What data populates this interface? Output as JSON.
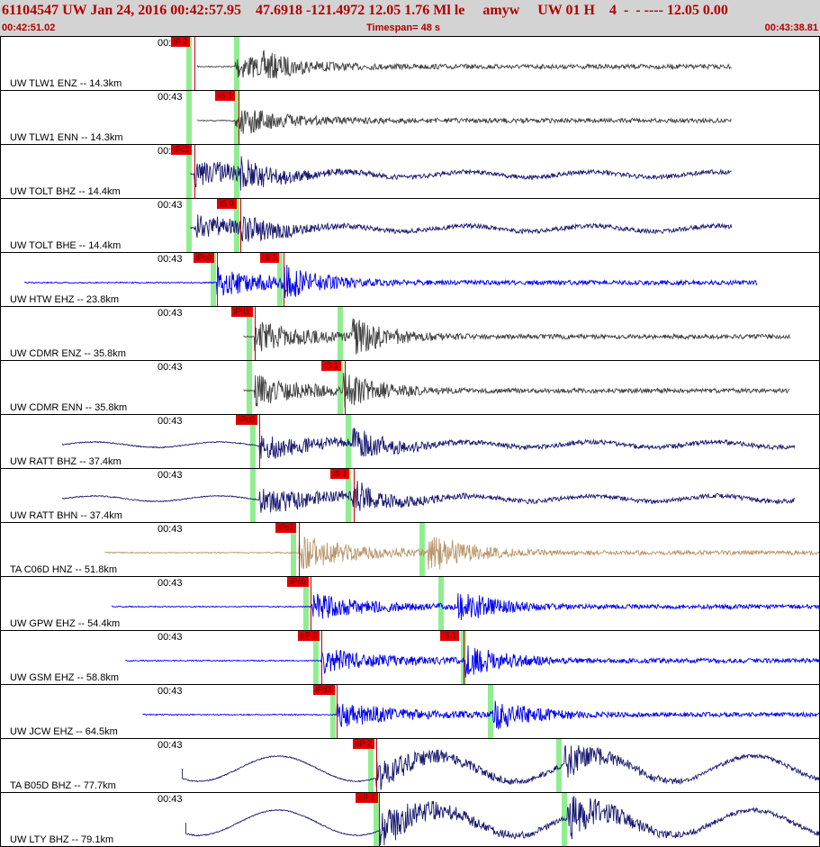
{
  "header": {
    "title": "61104547 UW Jan 24, 2016 00:42:57.95    47.6918 -121.4972 12.05 1.76 Ml le     amyw     UW 01 H    4  -  - ---- 12.05 0.00",
    "start_time": "00:42:51.02",
    "timespan": "Timespan=  48 s",
    "end_time": "00:43:38.81"
  },
  "colors": {
    "black": "#404040",
    "navy": "#191970",
    "blue": "#0000ee",
    "tan": "#b8956b",
    "pick": "#e00000",
    "pick_window": "#90ee90"
  },
  "traces": [
    {
      "label": "UW TLW1 ENZ -- 14.3km",
      "time": "00:43",
      "color": "black",
      "start_s": 11.5,
      "end_s": 42.7,
      "amp": 13,
      "burst_s": 13.7,
      "burst2_s": 15.3,
      "picks": [
        {
          "label": "iP 2",
          "time_s": 11.3
        }
      ],
      "windows": [
        11.0,
        13.8
      ]
    },
    {
      "label": "UW TLW1 ENN -- 14.3km",
      "time": "00:43",
      "color": "black",
      "start_s": 11.5,
      "end_s": 42.7,
      "amp": 12,
      "burst_s": 13.7,
      "burst2_s": 14.1,
      "picks": [
        {
          "label": "iS 1",
          "time_s": 13.9
        }
      ],
      "windows": [
        11.0,
        13.8
      ]
    },
    {
      "label": "UW TOLT BHZ -- 14.4km",
      "time": "00:43",
      "color": "navy",
      "start_s": 11.1,
      "end_s": 42.7,
      "amp": 14,
      "burst_s": 11.3,
      "burst2_s": 14.0,
      "picks": [
        {
          "label": "iPc1",
          "time_s": 11.3
        }
      ],
      "windows": [
        11.0,
        13.8
      ]
    },
    {
      "label": "UW TOLT BHE -- 14.4km",
      "time": "00:43",
      "color": "navy",
      "start_s": 11.1,
      "end_s": 42.7,
      "amp": 13,
      "burst_s": 11.3,
      "burst2_s": 14.0,
      "picks": [
        {
          "label": "iS 0",
          "time_s": 14.0
        }
      ],
      "windows": [
        11.0,
        13.8
      ]
    },
    {
      "label": "UW HTW EHZ -- 23.8km",
      "time": "00:43",
      "color": "blue",
      "start_s": 1.4,
      "end_s": 44.2,
      "amp": 16,
      "burst_s": 12.6,
      "burst2_s": 16.5,
      "picks": [
        {
          "label": "iPc0",
          "time_s": 12.6
        },
        {
          "label": "iS 1",
          "time_s": 16.5
        }
      ],
      "windows": [
        12.4,
        16.3
      ]
    },
    {
      "label": "UW CDMR ENZ -- 35.8km",
      "time": "00:43",
      "color": "black",
      "start_s": 14.2,
      "end_s": 46.1,
      "amp": 16,
      "burst_s": 14.8,
      "burst2_s": 20.5,
      "picks": [
        {
          "label": "iPd1",
          "time_s": 14.8
        }
      ],
      "windows": [
        14.5,
        19.8
      ]
    },
    {
      "label": "UW CDMR ENN -- 35.8km",
      "time": "00:43",
      "color": "black",
      "start_s": 14.2,
      "end_s": 46.1,
      "amp": 16,
      "burst_s": 14.8,
      "burst2_s": 20.0,
      "picks": [
        {
          "label": "iS 1",
          "time_s": 20.1
        }
      ],
      "windows": [
        14.5,
        19.8
      ]
    },
    {
      "label": "UW RATT BHZ -- 37.4km",
      "time": "00:43",
      "color": "navy",
      "start_s": 3.6,
      "end_s": 46.4,
      "amp": 14,
      "burst_s": 15.1,
      "burst2_s": 20.5,
      "picks": [
        {
          "label": "iPc0",
          "time_s": 15.1
        }
      ],
      "windows": [
        14.7,
        20.3
      ]
    },
    {
      "label": "UW RATT BHN -- 37.4km",
      "time": "00:43",
      "color": "navy",
      "start_s": 3.6,
      "end_s": 46.4,
      "amp": 14,
      "burst_s": 15.1,
      "burst2_s": 20.5,
      "picks": [
        {
          "label": "iS 1",
          "time_s": 20.6
        }
      ],
      "windows": [
        14.7,
        20.3
      ]
    },
    {
      "label": "TA C06D HNZ -- 51.8km",
      "time": "00:43",
      "color": "tan",
      "start_s": 6.1,
      "end_s": 49.0,
      "amp": 18,
      "burst_s": 17.4,
      "burst2_s": 24.9,
      "picks": [
        {
          "label": "iPc1",
          "time_s": 17.4
        }
      ],
      "windows": [
        17.1,
        24.6
      ]
    },
    {
      "label": "UW GPW EHZ -- 54.4km",
      "time": "00:43",
      "color": "blue",
      "start_s": 6.5,
      "end_s": 49.5,
      "amp": 14,
      "burst_s": 18.1,
      "burst2_s": 26.7,
      "picks": [
        {
          "label": "iPc0",
          "time_s": 18.1
        }
      ],
      "windows": [
        17.8,
        25.7
      ]
    },
    {
      "label": "UW GSM EHZ -- 58.8km",
      "time": "00:43",
      "color": "blue",
      "start_s": 7.3,
      "end_s": 50.4,
      "amp": 14,
      "burst_s": 18.7,
      "burst2_s": 27.1,
      "picks": [
        {
          "label": "eP 2",
          "time_s": 18.7
        },
        {
          "label": "iS 1",
          "time_s": 27.0
        }
      ],
      "windows": [
        18.4,
        27.0
      ]
    },
    {
      "label": "UW JCW EHZ -- 64.5km",
      "time": "00:43",
      "color": "blue",
      "start_s": 8.3,
      "end_s": 51.6,
      "amp": 14,
      "burst_s": 19.6,
      "burst2_s": 28.7,
      "picks": [
        {
          "label": "iPd1",
          "time_s": 19.6
        }
      ],
      "windows": [
        19.4,
        28.6
      ]
    },
    {
      "label": "TA B05D BHZ -- 77.7km",
      "time": "00:43",
      "color": "navy",
      "start_s": 10.6,
      "end_s": 53.9,
      "amp": 16,
      "burst_s": 21.9,
      "burst2_s": 32.8,
      "picks": [
        {
          "label": "eP 2",
          "time_s": 21.9
        }
      ],
      "windows": [
        21.6,
        32.6
      ]
    },
    {
      "label": "UW LTY BHZ -- 79.1km",
      "time": "00:43",
      "color": "navy",
      "start_s": 10.8,
      "end_s": 53.9,
      "amp": 22,
      "burst_s": 22.1,
      "burst2_s": 33.1,
      "picks": [
        {
          "label": "eP 1",
          "time_s": 22.1
        }
      ],
      "windows": [
        21.9,
        32.9
      ]
    }
  ]
}
